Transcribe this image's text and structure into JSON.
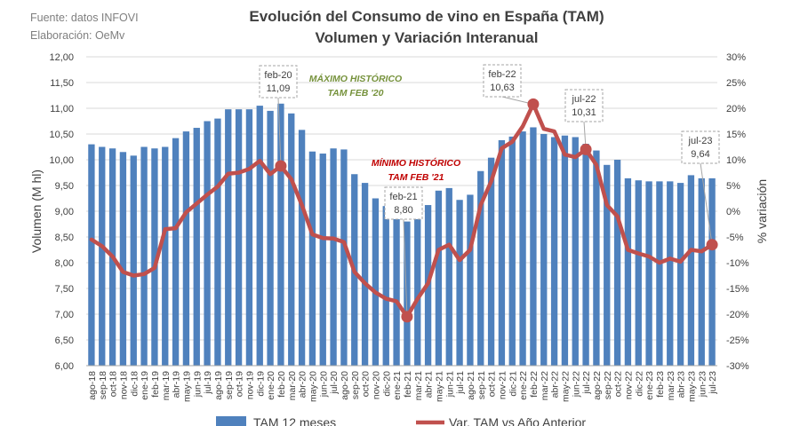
{
  "source_note": "Fuente: datos INFOVI",
  "elaboration_note": "Elaboración: OeMv",
  "chart_data": {
    "type": "bar",
    "title": "Evolución del Consumo de vino en España (TAM)",
    "subtitle": "Volumen y Variación Interanual",
    "ylabel": "Volumen (M hl)",
    "y2label": "% variación",
    "ylim": [
      6.0,
      12.0
    ],
    "y2lim": [
      -30,
      30
    ],
    "y_ticks": [
      "6,00",
      "6,50",
      "7,00",
      "7,50",
      "8,00",
      "8,50",
      "9,00",
      "9,50",
      "10,00",
      "10,50",
      "11,00",
      "11,50",
      "12,00"
    ],
    "y2_ticks": [
      "-30%",
      "-25%",
      "-20%",
      "-15%",
      "-10%",
      "-5%",
      "0%",
      "5%",
      "10%",
      "15%",
      "20%",
      "25%",
      "30%"
    ],
    "categories": [
      "ago-18",
      "sep-18",
      "oct-18",
      "nov-18",
      "dic-18",
      "ene-19",
      "feb-19",
      "mar-19",
      "abr-19",
      "may-19",
      "jun-19",
      "jul-19",
      "ago-19",
      "sep-19",
      "oct-19",
      "nov-19",
      "dic-19",
      "ene-20",
      "feb-20",
      "mar-20",
      "abr-20",
      "may-20",
      "jun-20",
      "jul-20",
      "ago-20",
      "sep-20",
      "oct-20",
      "nov-20",
      "dic-20",
      "ene-21",
      "feb-21",
      "mar-21",
      "abr-21",
      "may-21",
      "jun-21",
      "jul-21",
      "ago-21",
      "sep-21",
      "oct-21",
      "nov-21",
      "dic-21",
      "ene-22",
      "feb-22",
      "mar-22",
      "abr-22",
      "may-22",
      "jun-22",
      "jul-22",
      "ago-22",
      "sep-22",
      "oct-22",
      "nov-22",
      "dic-22",
      "ene-23",
      "feb-23",
      "mar-23",
      "abr-23",
      "may-23",
      "jun-23",
      "jul-23"
    ],
    "series": [
      {
        "name": "TAM 12 meses",
        "kind": "bar",
        "axis": "left",
        "color": "#4f81bd",
        "values": [
          10.3,
          10.25,
          10.22,
          10.15,
          10.08,
          10.25,
          10.22,
          10.25,
          10.42,
          10.55,
          10.62,
          10.75,
          10.8,
          10.98,
          10.98,
          10.98,
          11.05,
          10.95,
          11.09,
          10.9,
          10.58,
          10.16,
          10.12,
          10.22,
          10.2,
          9.72,
          9.55,
          9.25,
          9.1,
          9.0,
          8.8,
          8.9,
          9.12,
          9.4,
          9.45,
          9.22,
          9.32,
          9.78,
          10.04,
          10.38,
          10.45,
          10.55,
          10.63,
          10.5,
          10.44,
          10.47,
          10.44,
          10.31,
          10.18,
          9.9,
          10.0,
          9.64,
          9.6,
          9.58,
          9.58,
          9.58,
          9.55,
          9.7,
          9.64,
          9.64
        ]
      },
      {
        "name": "Var. TAM vs Año Anterior",
        "kind": "line",
        "axis": "right",
        "color": "#c0504d",
        "values": [
          -5.5,
          -6.8,
          -8.8,
          -11.8,
          -12.5,
          -12.2,
          -11.0,
          -3.5,
          -3.3,
          -0.2,
          1.5,
          3.2,
          4.8,
          7.3,
          7.5,
          8.2,
          9.8,
          7.2,
          8.8,
          6.2,
          1.2,
          -4.5,
          -5.2,
          -5.3,
          -6.0,
          -11.8,
          -14.0,
          -15.8,
          -17.0,
          -17.5,
          -20.5,
          -17.0,
          -14.0,
          -7.5,
          -6.5,
          -9.5,
          -7.5,
          1.2,
          5.8,
          12.2,
          13.5,
          16.5,
          20.8,
          16.0,
          15.5,
          11.0,
          10.5,
          12.0,
          9.0,
          1.2,
          -1.0,
          -7.5,
          -8.2,
          -8.8,
          -10.0,
          -9.2,
          -9.8,
          -7.5,
          -7.8,
          -6.5
        ]
      }
    ],
    "callouts": [
      {
        "category": "feb-20",
        "month": "feb-20",
        "value": "11,09"
      },
      {
        "category": "feb-21",
        "month": "feb-21",
        "value": "8,80"
      },
      {
        "category": "feb-22",
        "month": "feb-22",
        "value": "10,63"
      },
      {
        "category": "jul-22",
        "month": "jul-22",
        "value": "10,31"
      },
      {
        "category": "jul-23",
        "month": "jul-23",
        "value": "9,64"
      }
    ],
    "annotations": [
      {
        "line1": "MÁXIMO HISTÓRICO",
        "line2": "TAM FEB '20",
        "color": "#76923c"
      },
      {
        "line1": "MÍNIMO HISTÓRICO",
        "line2": "TAM FEB '21",
        "color": "#c00000"
      }
    ],
    "legend": {
      "position": "bottom",
      "entries": [
        "TAM 12 meses",
        "Var. TAM vs Año Anterior"
      ]
    }
  }
}
